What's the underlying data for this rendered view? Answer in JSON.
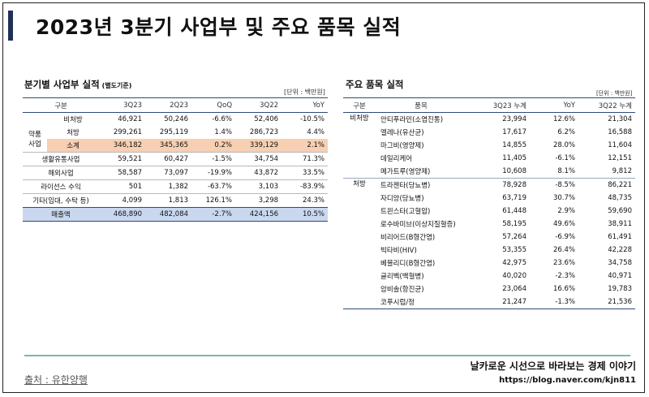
{
  "title": "2023년 3분기 사업부 및 주요 품목 실적",
  "left": {
    "heading": "분기별 사업부 실적",
    "heading_note": "(별도기준)",
    "unit": "[단위 : 백만원]",
    "headers": [
      "구분",
      "",
      "3Q23",
      "2Q23",
      "QoQ",
      "3Q22",
      "YoY"
    ],
    "group_label_1": "약품",
    "group_label_2": "사업",
    "rows": [
      {
        "sub": "비처방",
        "c1": "46,921",
        "c2": "50,246",
        "c3": "-6.6%",
        "c4": "52,406",
        "c5": "-10.5%"
      },
      {
        "sub": "처방",
        "c1": "299,261",
        "c2": "295,119",
        "c3": "1.4%",
        "c4": "286,723",
        "c5": "4.4%"
      },
      {
        "sub": "소계",
        "c1": "346,182",
        "c2": "345,365",
        "c3": "0.2%",
        "c4": "339,129",
        "c5": "2.1%"
      },
      {
        "sub": "생활유통사업",
        "c1": "59,521",
        "c2": "60,427",
        "c3": "-1.5%",
        "c4": "34,754",
        "c5": "71.3%"
      },
      {
        "sub": "해외사업",
        "c1": "58,587",
        "c2": "73,097",
        "c3": "-19.9%",
        "c4": "43,872",
        "c5": "33.5%"
      },
      {
        "sub": "라이선스 수익",
        "c1": "501",
        "c2": "1,382",
        "c3": "-63.7%",
        "c4": "3,103",
        "c5": "-83.9%"
      },
      {
        "sub": "기타(임대, 수탁 등)",
        "c1": "4,099",
        "c2": "1,813",
        "c3": "126.1%",
        "c4": "3,298",
        "c5": "24.3%"
      },
      {
        "sub": "매출액",
        "c1": "468,890",
        "c2": "482,084",
        "c3": "-2.7%",
        "c4": "424,156",
        "c5": "10.5%"
      }
    ]
  },
  "right": {
    "heading": "주요 품목 실적",
    "unit": "[단위 : 백만원]",
    "headers": [
      "구분",
      "품목",
      "3Q23 누계",
      "YoY",
      "3Q22 누계"
    ],
    "groups": [
      {
        "label": "비처방",
        "items": [
          {
            "name": "안티푸라민(소염진통)",
            "v1": "23,994",
            "v2": "12.6%",
            "v3": "21,304"
          },
          {
            "name": "엘레나(유산균)",
            "v1": "17,617",
            "v2": "6.2%",
            "v3": "16,588"
          },
          {
            "name": "마그비(영양제)",
            "v1": "14,855",
            "v2": "28.0%",
            "v3": "11,604"
          },
          {
            "name": "데일리케어",
            "v1": "11,405",
            "v2": "-6.1%",
            "v3": "12,151"
          },
          {
            "name": "메가트루(영양제)",
            "v1": "10,608",
            "v2": "8.1%",
            "v3": "9,812"
          }
        ]
      },
      {
        "label": "처방",
        "items": [
          {
            "name": "트라젠타(당뇨병)",
            "v1": "78,928",
            "v2": "-8.5%",
            "v3": "86,221"
          },
          {
            "name": "자디앙(당뇨병)",
            "v1": "63,719",
            "v2": "30.7%",
            "v3": "48,735"
          },
          {
            "name": "트윈스타(고혈압)",
            "v1": "61,448",
            "v2": "2.9%",
            "v3": "59,690"
          },
          {
            "name": "로수바미브(이상지질혈증)",
            "v1": "58,195",
            "v2": "49.6%",
            "v3": "38,911"
          },
          {
            "name": "비리어드(B형간염)",
            "v1": "57,264",
            "v2": "-6.9%",
            "v3": "61,491"
          },
          {
            "name": "빅타비(HIV)",
            "v1": "53,355",
            "v2": "26.4%",
            "v3": "42,228"
          },
          {
            "name": "베믈리디(B형간염)",
            "v1": "42,975",
            "v2": "23.6%",
            "v3": "34,758"
          },
          {
            "name": "글리벡(백혈병)",
            "v1": "40,020",
            "v2": "-2.3%",
            "v3": "40,971"
          },
          {
            "name": "암비솔(항진균)",
            "v1": "23,064",
            "v2": "16.6%",
            "v3": "19,783"
          },
          {
            "name": "코푸시럽/정",
            "v1": "21,247",
            "v2": "-1.3%",
            "v3": "21,536"
          }
        ]
      }
    ]
  },
  "footer": {
    "source": "출처 : 유한양행",
    "blog_title": "날카로운 시선으로 바라보는 경제 이야기",
    "blog_url": "https://blog.naver.com/kjn811"
  },
  "colors": {
    "accent": "#1f2f56",
    "subtotal": "#f7cfb2",
    "total": "#c9d8ef",
    "line": "#7fb7a2"
  }
}
